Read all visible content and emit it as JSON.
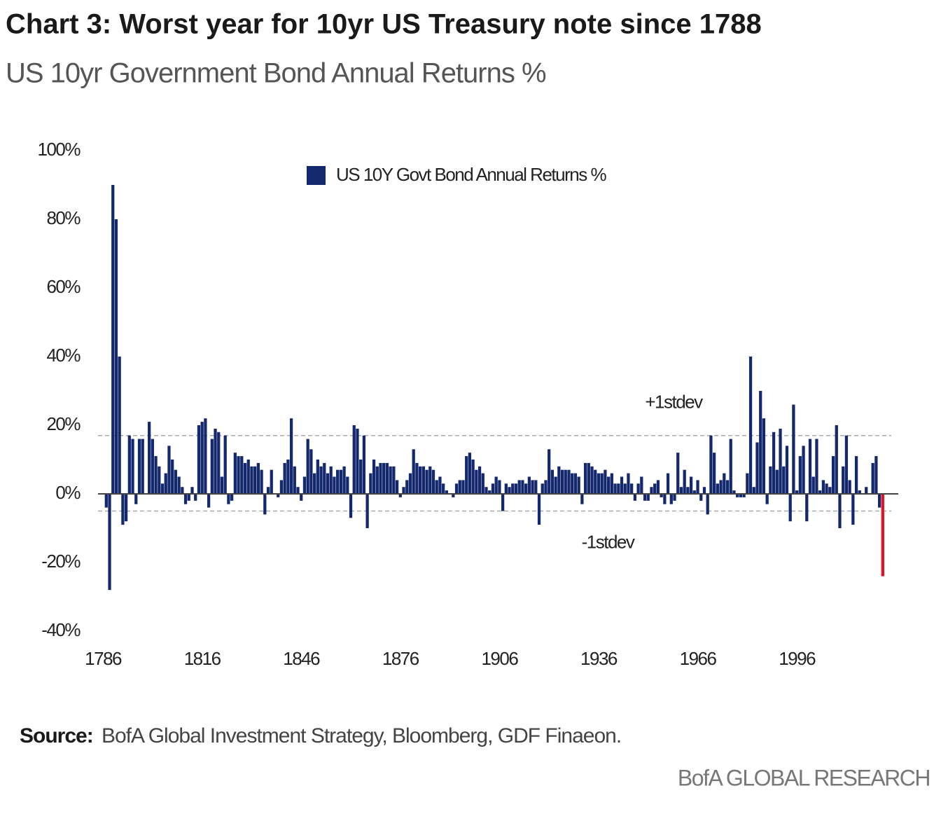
{
  "title": "Chart 3: Worst year for 10yr US Treasury note since 1788",
  "subtitle": "US 10yr Government Bond Annual Returns %",
  "source_label": "Source:",
  "source_text": "BofA Global Investment Strategy, Bloomberg, GDF Finaeon.",
  "brand": "BofA GLOBAL RESEARCH",
  "chart_data": {
    "type": "bar",
    "x": [
      1787,
      1788,
      1789,
      1790,
      1791,
      1792,
      1793,
      1794,
      1795,
      1796,
      1797,
      1798,
      1799,
      1800,
      1801,
      1802,
      1803,
      1804,
      1805,
      1806,
      1807,
      1808,
      1809,
      1810,
      1811,
      1812,
      1813,
      1814,
      1815,
      1816,
      1817,
      1818,
      1819,
      1820,
      1821,
      1822,
      1823,
      1824,
      1825,
      1826,
      1827,
      1828,
      1829,
      1830,
      1831,
      1832,
      1833,
      1834,
      1835,
      1836,
      1837,
      1838,
      1839,
      1840,
      1841,
      1842,
      1843,
      1844,
      1845,
      1846,
      1847,
      1848,
      1849,
      1850,
      1851,
      1852,
      1853,
      1854,
      1855,
      1856,
      1857,
      1858,
      1859,
      1860,
      1861,
      1862,
      1863,
      1864,
      1865,
      1866,
      1867,
      1868,
      1869,
      1870,
      1871,
      1872,
      1873,
      1874,
      1875,
      1876,
      1877,
      1878,
      1879,
      1880,
      1881,
      1882,
      1883,
      1884,
      1885,
      1886,
      1887,
      1888,
      1889,
      1890,
      1891,
      1892,
      1893,
      1894,
      1895,
      1896,
      1897,
      1898,
      1899,
      1900,
      1901,
      1902,
      1903,
      1904,
      1905,
      1906,
      1907,
      1908,
      1909,
      1910,
      1911,
      1912,
      1913,
      1914,
      1915,
      1916,
      1917,
      1918,
      1919,
      1920,
      1921,
      1922,
      1923,
      1924,
      1925,
      1926,
      1927,
      1928,
      1929,
      1930,
      1931,
      1932,
      1933,
      1934,
      1935,
      1936,
      1937,
      1938,
      1939,
      1940,
      1941,
      1942,
      1943,
      1944,
      1945,
      1946,
      1947,
      1948,
      1949,
      1950,
      1951,
      1952,
      1953,
      1954,
      1955,
      1956,
      1957,
      1958,
      1959,
      1960,
      1961,
      1962,
      1963,
      1964,
      1965,
      1966,
      1967,
      1968,
      1969,
      1970,
      1971,
      1972,
      1973,
      1974,
      1975,
      1976,
      1977,
      1978,
      1979,
      1980,
      1981,
      1982,
      1983,
      1984,
      1985,
      1986,
      1987,
      1988,
      1989,
      1990,
      1991,
      1992,
      1993,
      1994,
      1995,
      1996,
      1997,
      1998,
      1999,
      2000,
      2001,
      2002,
      2003,
      2004,
      2005,
      2006,
      2007,
      2008,
      2009,
      2010,
      2011,
      2012,
      2013,
      2014,
      2015,
      2016,
      2017,
      2018,
      2019,
      2020,
      2021,
      2022
    ],
    "series": [
      {
        "name": "US 10Y Govt Bond Annual Returns %",
        "color": "#14286e",
        "values": [
          -4,
          -28,
          90,
          80,
          40,
          -9,
          -8,
          17,
          16,
          -3,
          16,
          16,
          0,
          21,
          16,
          11,
          8,
          3,
          6,
          14,
          10,
          7,
          5,
          2,
          -3,
          -2,
          2,
          -2,
          20,
          21,
          22,
          -4,
          16,
          19,
          18,
          5,
          17,
          -3,
          -2,
          12,
          11,
          11,
          9,
          10,
          8,
          8,
          9,
          7,
          -6,
          2,
          7,
          0,
          -1,
          4,
          9,
          10,
          22,
          8,
          2,
          -2,
          5,
          16,
          13,
          6,
          10,
          8,
          9,
          6,
          8,
          5,
          7,
          7,
          8,
          5,
          -7,
          20,
          19,
          10,
          17,
          -10,
          6,
          10,
          8,
          9,
          9,
          9,
          8,
          8,
          4,
          -1,
          2,
          4,
          6,
          13,
          9,
          8,
          8,
          7,
          8,
          7,
          4,
          5,
          3,
          1,
          0,
          -1,
          3,
          4,
          4,
          11,
          12,
          10,
          7,
          8,
          6,
          2,
          1,
          3,
          5,
          4,
          -5,
          3,
          2,
          3,
          3,
          4,
          4,
          3,
          5,
          4,
          4,
          -9,
          3,
          4,
          13,
          7,
          5,
          8,
          7,
          7,
          7,
          6,
          6,
          5,
          -3,
          9,
          9,
          8,
          7,
          6,
          6,
          7,
          5,
          6,
          3,
          3,
          5,
          3,
          6,
          3,
          -2,
          3,
          5,
          -2,
          -2,
          2,
          3,
          4,
          -1,
          -3,
          6,
          -3,
          -2,
          12,
          2,
          7,
          2,
          5,
          1,
          4,
          -2,
          2,
          -6,
          17,
          12,
          3,
          4,
          6,
          4,
          16,
          1,
          -1,
          -1,
          -1,
          6,
          40,
          2,
          15,
          30,
          22,
          -3,
          8,
          18,
          7,
          19,
          8,
          14,
          -8,
          26,
          1,
          11,
          14,
          -8,
          16,
          5,
          16,
          1,
          4,
          3,
          2,
          11,
          20,
          -10,
          8,
          17,
          4,
          -9,
          11,
          1,
          0,
          2,
          0,
          9,
          11,
          -4,
          -24
        ]
      }
    ],
    "highlight": {
      "x": 2022,
      "color": "#e8101e"
    },
    "reference_lines": [
      {
        "value": 17,
        "label": "+1stdev"
      },
      {
        "value": -5,
        "label": "-1stdev"
      }
    ],
    "xlim": [
      1784.5,
      2026.7
    ],
    "xticks": [
      1786,
      1816,
      1846,
      1876,
      1906,
      1936,
      1966,
      1996
    ],
    "ylim": [
      -40,
      100
    ],
    "yticks": [
      {
        "value": -40,
        "label": "-40%"
      },
      {
        "value": -20,
        "label": "-20%"
      },
      {
        "value": 0,
        "label": "0%"
      },
      {
        "value": 20,
        "label": "20%"
      },
      {
        "value": 40,
        "label": "40%"
      },
      {
        "value": 60,
        "label": "60%"
      },
      {
        "value": 80,
        "label": "80%"
      },
      {
        "value": 100,
        "label": "100%"
      }
    ],
    "legend": "top"
  }
}
